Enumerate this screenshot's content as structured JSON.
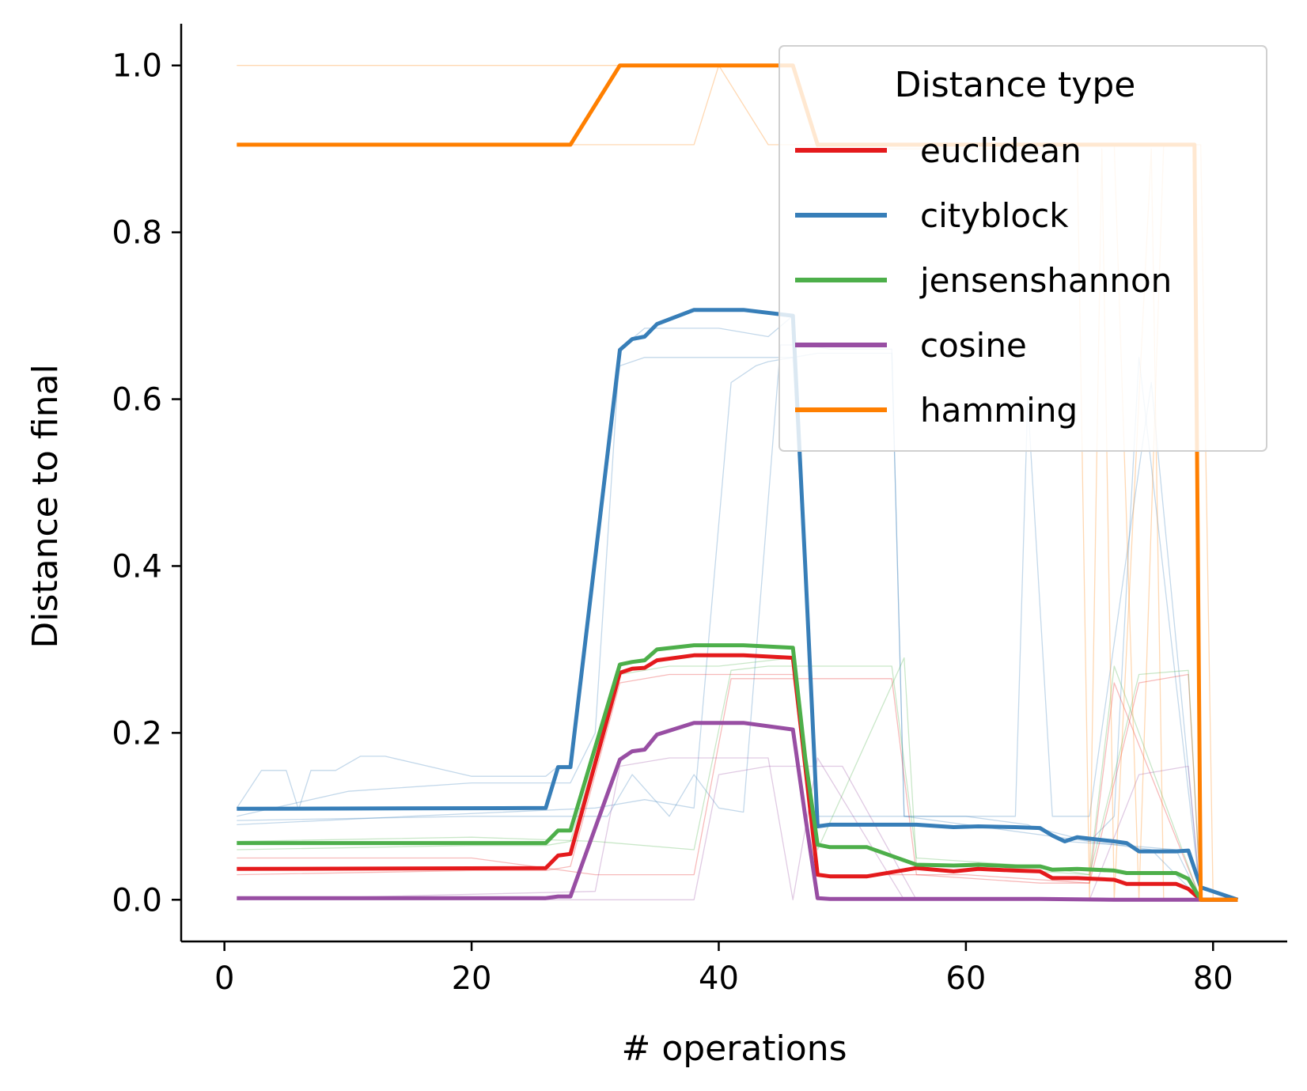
{
  "chart_data": {
    "type": "line",
    "xlabel": "# operations",
    "ylabel": "Distance to final",
    "xlim": [
      -3.5,
      86
    ],
    "ylim": [
      -0.05,
      1.05
    ],
    "xticks": [
      0,
      20,
      40,
      60,
      80
    ],
    "yticks": [
      0.0,
      0.2,
      0.4,
      0.6,
      0.8,
      1.0
    ],
    "ytick_labels": [
      "0.0",
      "0.2",
      "0.4",
      "0.6",
      "0.8",
      "1.0"
    ],
    "grid": false,
    "legend": {
      "title": "Distance type",
      "placement": "top-right"
    },
    "series": [
      {
        "name": "euclidean",
        "color": "#e41a1c",
        "x": [
          1,
          26,
          27,
          28,
          32,
          33,
          34,
          35,
          38,
          42,
          46,
          47,
          48,
          49,
          52,
          56,
          59,
          61,
          64,
          66,
          67,
          69,
          72,
          73,
          77,
          78,
          79,
          82
        ],
        "y": [
          0.037,
          0.038,
          0.053,
          0.055,
          0.272,
          0.277,
          0.278,
          0.287,
          0.293,
          0.293,
          0.29,
          0.16,
          0.03,
          0.028,
          0.028,
          0.038,
          0.034,
          0.037,
          0.035,
          0.034,
          0.026,
          0.026,
          0.024,
          0.019,
          0.019,
          0.013,
          0.0,
          0.0
        ]
      },
      {
        "name": "cityblock",
        "color": "#377eb8",
        "x": [
          1,
          26,
          27,
          28,
          32,
          33,
          34,
          35,
          38,
          42,
          46,
          47,
          48,
          49,
          52,
          56,
          59,
          61,
          64,
          66,
          67,
          68,
          69,
          72,
          73,
          74,
          77,
          78,
          79,
          82
        ],
        "y": [
          0.109,
          0.11,
          0.159,
          0.159,
          0.659,
          0.672,
          0.675,
          0.69,
          0.707,
          0.707,
          0.7,
          0.4,
          0.088,
          0.09,
          0.09,
          0.09,
          0.087,
          0.088,
          0.087,
          0.086,
          0.077,
          0.07,
          0.075,
          0.07,
          0.068,
          0.058,
          0.058,
          0.059,
          0.015,
          0.0
        ]
      },
      {
        "name": "jensenshannon",
        "color": "#4daf4a",
        "x": [
          1,
          26,
          27,
          28,
          32,
          33,
          34,
          35,
          38,
          42,
          46,
          47,
          48,
          49,
          52,
          56,
          59,
          61,
          64,
          66,
          67,
          69,
          72,
          73,
          77,
          78,
          79,
          82
        ],
        "y": [
          0.068,
          0.068,
          0.083,
          0.083,
          0.282,
          0.285,
          0.287,
          0.3,
          0.305,
          0.305,
          0.302,
          0.17,
          0.066,
          0.063,
          0.063,
          0.042,
          0.041,
          0.042,
          0.04,
          0.04,
          0.036,
          0.037,
          0.035,
          0.032,
          0.032,
          0.025,
          0.0,
          0.0
        ]
      },
      {
        "name": "cosine",
        "color": "#984ea3",
        "x": [
          1,
          26,
          27,
          28,
          32,
          33,
          34,
          35,
          38,
          42,
          46,
          47,
          48,
          49,
          56,
          66,
          72,
          79,
          82
        ],
        "y": [
          0.002,
          0.002,
          0.004,
          0.004,
          0.168,
          0.178,
          0.18,
          0.198,
          0.212,
          0.212,
          0.204,
          0.1,
          0.002,
          0.001,
          0.001,
          0.001,
          0.0,
          0.0,
          0.0
        ]
      },
      {
        "name": "hamming",
        "color": "#ff7f00",
        "x": [
          1,
          28,
          32,
          46,
          48,
          78.5,
          79,
          82
        ],
        "y": [
          0.905,
          0.905,
          1.0,
          1.0,
          0.905,
          0.905,
          0.0,
          0.0
        ]
      }
    ],
    "background_runs": [
      {
        "series": "cityblock",
        "x": [
          1,
          3,
          5,
          6,
          7,
          9,
          11,
          13,
          20,
          26,
          27,
          28,
          32,
          34,
          37,
          39,
          42,
          44,
          46,
          48,
          52,
          55,
          60,
          65,
          68,
          73,
          77,
          79
        ],
        "y": [
          0.11,
          0.155,
          0.155,
          0.108,
          0.155,
          0.155,
          0.172,
          0.172,
          0.148,
          0.148,
          0.16,
          0.16,
          0.64,
          0.65,
          0.65,
          0.65,
          0.65,
          0.65,
          0.65,
          0.1,
          0.1,
          0.1,
          0.1,
          0.09,
          0.07,
          0.065,
          0.06,
          0.0
        ]
      },
      {
        "series": "cityblock",
        "x": [
          1,
          10,
          20,
          26,
          28,
          30,
          32,
          34,
          36,
          40,
          44,
          46,
          48,
          55,
          60,
          66,
          70,
          75,
          79
        ],
        "y": [
          0.1,
          0.13,
          0.14,
          0.14,
          0.14,
          0.2,
          0.66,
          0.685,
          0.685,
          0.685,
          0.675,
          0.7,
          0.09,
          0.09,
          0.088,
          0.085,
          0.07,
          0.06,
          0.0
        ]
      },
      {
        "series": "cityblock",
        "x": [
          1,
          15,
          30,
          34,
          38,
          41,
          43,
          44,
          48,
          54,
          55,
          58,
          64,
          65,
          67,
          70,
          75,
          79
        ],
        "y": [
          0.09,
          0.1,
          0.11,
          0.12,
          0.11,
          0.62,
          0.64,
          0.645,
          0.655,
          0.655,
          0.1,
          0.1,
          0.1,
          0.6,
          0.1,
          0.1,
          0.62,
          0.0
        ]
      },
      {
        "series": "cityblock",
        "x": [
          1,
          20,
          31,
          33,
          36,
          38,
          40,
          42,
          45,
          47,
          49,
          54,
          55,
          60,
          70,
          72,
          74,
          79
        ],
        "y": [
          0.095,
          0.1,
          0.1,
          0.15,
          0.1,
          0.15,
          0.11,
          0.105,
          0.665,
          0.665,
          0.66,
          0.66,
          0.1,
          0.09,
          0.07,
          0.1,
          0.65,
          0.0
        ]
      },
      {
        "series": "euclidean",
        "x": [
          1,
          20,
          26,
          28,
          32,
          36,
          40,
          46,
          48,
          55,
          60,
          70,
          72,
          79
        ],
        "y": [
          0.03,
          0.035,
          0.035,
          0.04,
          0.26,
          0.27,
          0.27,
          0.27,
          0.03,
          0.03,
          0.03,
          0.02,
          0.26,
          0.0
        ]
      },
      {
        "series": "euclidean",
        "x": [
          1,
          20,
          30,
          38,
          41,
          44,
          50,
          54,
          56,
          66,
          70,
          74,
          78,
          79
        ],
        "y": [
          0.05,
          0.05,
          0.03,
          0.03,
          0.265,
          0.265,
          0.265,
          0.265,
          0.03,
          0.02,
          0.02,
          0.26,
          0.27,
          0.0
        ]
      },
      {
        "series": "jensenshannon",
        "x": [
          1,
          20,
          26,
          28,
          32,
          36,
          40,
          46,
          48,
          55,
          56,
          60,
          70,
          74,
          78,
          79
        ],
        "y": [
          0.06,
          0.065,
          0.065,
          0.07,
          0.27,
          0.28,
          0.28,
          0.29,
          0.06,
          0.29,
          0.04,
          0.04,
          0.03,
          0.27,
          0.275,
          0.0
        ]
      },
      {
        "series": "jensenshannon",
        "x": [
          1,
          20,
          30,
          38,
          41,
          44,
          54,
          56,
          66,
          70,
          72,
          79
        ],
        "y": [
          0.07,
          0.075,
          0.07,
          0.06,
          0.275,
          0.28,
          0.28,
          0.05,
          0.04,
          0.03,
          0.28,
          0.0
        ]
      },
      {
        "series": "cosine",
        "x": [
          1,
          30,
          32,
          36,
          40,
          44,
          46,
          48,
          55,
          65,
          70,
          74,
          78,
          79
        ],
        "y": [
          0.0,
          0.01,
          0.16,
          0.17,
          0.17,
          0.17,
          0.0,
          0.17,
          0.0,
          0.0,
          0.0,
          0.15,
          0.16,
          0.0
        ]
      },
      {
        "series": "cosine",
        "x": [
          1,
          30,
          38,
          40,
          44,
          50,
          56,
          62,
          70,
          79
        ],
        "y": [
          0.0,
          0.0,
          0.0,
          0.15,
          0.16,
          0.16,
          0.0,
          0.0,
          0.0,
          0.0
        ]
      },
      {
        "series": "hamming",
        "x": [
          1,
          28,
          30,
          32,
          46,
          48,
          69,
          70,
          71,
          72,
          75,
          76,
          79
        ],
        "y": [
          1.0,
          1.0,
          1.0,
          1.0,
          1.0,
          0.9,
          0.9,
          0.0,
          0.9,
          0.0,
          0.9,
          0.0,
          0.0
        ]
      },
      {
        "series": "hamming",
        "x": [
          1,
          28,
          32,
          38,
          40,
          44,
          48,
          60,
          70,
          72,
          74,
          76,
          79,
          80,
          81
        ],
        "y": [
          0.905,
          0.905,
          0.905,
          0.905,
          1.0,
          0.905,
          0.905,
          0.905,
          0.905,
          0.905,
          0.0,
          0.905,
          0.905,
          0.0,
          0.0
        ]
      }
    ]
  }
}
